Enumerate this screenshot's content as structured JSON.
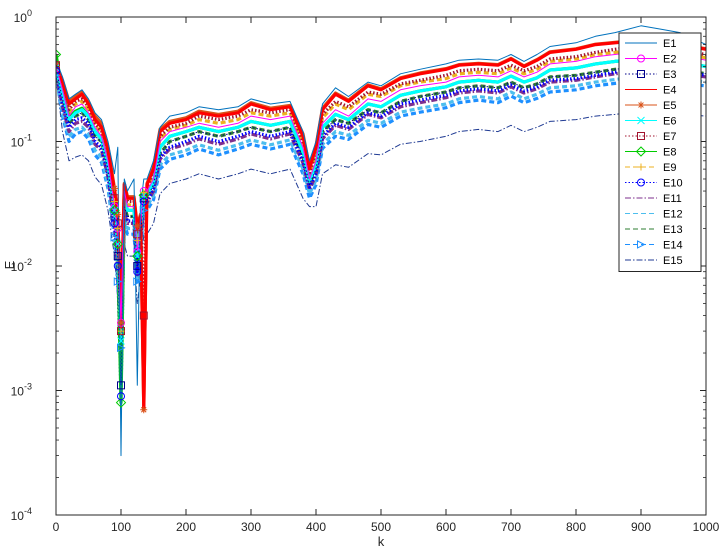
{
  "chart_data": {
    "type": "line",
    "title": "",
    "xlabel": "k",
    "ylabel": "E",
    "xlim": [
      0,
      1000
    ],
    "ylim": [
      0.0001,
      1
    ],
    "yscale": "log",
    "x_ticks": [
      0,
      100,
      200,
      300,
      400,
      500,
      600,
      700,
      800,
      900,
      1000
    ],
    "y_ticks": [
      {
        "value": 0.0001,
        "base": "10",
        "exp": "-4"
      },
      {
        "value": 0.001,
        "base": "10",
        "exp": "-3"
      },
      {
        "value": 0.01,
        "base": "10",
        "exp": "-2"
      },
      {
        "value": 0.1,
        "base": "10",
        "exp": "-1"
      },
      {
        "value": 1,
        "base": "10",
        "exp": "0"
      }
    ],
    "grid": false,
    "legend_position": "top-right",
    "x": [
      0,
      10,
      20,
      30,
      40,
      50,
      60,
      70,
      80,
      90,
      95,
      100,
      105,
      110,
      120,
      125,
      130,
      135,
      140,
      150,
      160,
      175,
      200,
      220,
      250,
      280,
      300,
      330,
      360,
      380,
      390,
      400,
      410,
      430,
      450,
      480,
      500,
      530,
      560,
      600,
      620,
      650,
      680,
      700,
      720,
      740,
      760,
      800,
      830,
      860,
      900,
      930,
      960,
      1000
    ],
    "series": [
      {
        "name": "E1",
        "color": "#0072BD",
        "style": "solid",
        "marker": "none",
        "values": [
          0.45,
          0.33,
          0.22,
          0.24,
          0.26,
          0.22,
          0.17,
          0.15,
          0.1,
          0.055,
          0.09,
          0.0003,
          0.05,
          0.04,
          0.05,
          0.0011,
          0.03,
          0.05,
          0.05,
          0.07,
          0.13,
          0.16,
          0.17,
          0.19,
          0.18,
          0.19,
          0.22,
          0.2,
          0.21,
          0.12,
          0.07,
          0.1,
          0.2,
          0.27,
          0.23,
          0.3,
          0.28,
          0.35,
          0.38,
          0.42,
          0.45,
          0.46,
          0.45,
          0.5,
          0.44,
          0.5,
          0.58,
          0.62,
          0.7,
          0.75,
          0.85,
          0.8,
          0.75,
          0.6
        ]
      },
      {
        "name": "E2",
        "color": "#FF00FF",
        "style": "solid",
        "marker": "o",
        "values": [
          0.4,
          0.26,
          0.16,
          0.19,
          0.2,
          0.17,
          0.13,
          0.11,
          0.07,
          0.03,
          0.02,
          0.0035,
          0.04,
          0.03,
          0.03,
          0.013,
          0.022,
          0.04,
          0.04,
          0.05,
          0.1,
          0.12,
          0.13,
          0.14,
          0.13,
          0.14,
          0.16,
          0.15,
          0.16,
          0.09,
          0.05,
          0.07,
          0.14,
          0.18,
          0.16,
          0.22,
          0.21,
          0.26,
          0.28,
          0.3,
          0.33,
          0.34,
          0.33,
          0.37,
          0.33,
          0.36,
          0.42,
          0.44,
          0.48,
          0.5,
          0.53,
          0.52,
          0.5,
          0.45
        ]
      },
      {
        "name": "E3",
        "color": "#00008B",
        "style": "dotted",
        "marker": "s",
        "values": [
          0.38,
          0.22,
          0.14,
          0.16,
          0.17,
          0.15,
          0.11,
          0.1,
          0.06,
          0.025,
          0.012,
          0.0011,
          0.03,
          0.025,
          0.025,
          0.01,
          0.018,
          0.035,
          0.035,
          0.045,
          0.08,
          0.1,
          0.11,
          0.12,
          0.11,
          0.12,
          0.13,
          0.12,
          0.13,
          0.075,
          0.045,
          0.06,
          0.12,
          0.15,
          0.14,
          0.18,
          0.17,
          0.21,
          0.23,
          0.25,
          0.27,
          0.28,
          0.27,
          0.3,
          0.27,
          0.29,
          0.33,
          0.34,
          0.36,
          0.38,
          0.4,
          0.39,
          0.38,
          0.35
        ]
      },
      {
        "name": "E4",
        "color": "#FF0000",
        "style": "solid",
        "marker": "none",
        "values": [
          0.42,
          0.3,
          0.2,
          0.22,
          0.24,
          0.2,
          0.15,
          0.13,
          0.085,
          0.04,
          0.025,
          0.0032,
          0.045,
          0.035,
          0.035,
          0.02,
          0.025,
          0.0007,
          0.045,
          0.06,
          0.12,
          0.14,
          0.15,
          0.17,
          0.16,
          0.17,
          0.2,
          0.18,
          0.19,
          0.11,
          0.06,
          0.09,
          0.18,
          0.24,
          0.21,
          0.28,
          0.26,
          0.32,
          0.35,
          0.38,
          0.41,
          0.42,
          0.41,
          0.46,
          0.4,
          0.45,
          0.52,
          0.55,
          0.6,
          0.62,
          0.65,
          0.63,
          0.6,
          0.55
        ]
      },
      {
        "name": "E5",
        "color": "#D95319",
        "style": "solid",
        "marker": "*",
        "values": [
          0.42,
          0.31,
          0.21,
          0.23,
          0.25,
          0.21,
          0.16,
          0.14,
          0.09,
          0.042,
          0.026,
          0.0035,
          0.046,
          0.036,
          0.036,
          0.021,
          0.026,
          0.0007,
          0.046,
          0.062,
          0.125,
          0.145,
          0.155,
          0.175,
          0.165,
          0.175,
          0.205,
          0.185,
          0.195,
          0.115,
          0.062,
          0.092,
          0.185,
          0.245,
          0.215,
          0.285,
          0.265,
          0.325,
          0.355,
          0.385,
          0.415,
          0.425,
          0.415,
          0.465,
          0.405,
          0.455,
          0.525,
          0.555,
          0.605,
          0.625,
          0.655,
          0.635,
          0.605,
          0.555
        ]
      },
      {
        "name": "E6",
        "color": "#00FFFF",
        "style": "solid",
        "marker": "x",
        "values": [
          0.39,
          0.24,
          0.15,
          0.17,
          0.18,
          0.16,
          0.12,
          0.105,
          0.065,
          0.028,
          0.015,
          0.0025,
          0.035,
          0.028,
          0.028,
          0.012,
          0.02,
          0.037,
          0.037,
          0.047,
          0.09,
          0.11,
          0.12,
          0.13,
          0.12,
          0.13,
          0.145,
          0.135,
          0.145,
          0.082,
          0.048,
          0.065,
          0.13,
          0.165,
          0.15,
          0.2,
          0.19,
          0.235,
          0.255,
          0.275,
          0.3,
          0.31,
          0.3,
          0.335,
          0.3,
          0.325,
          0.375,
          0.39,
          0.42,
          0.44,
          0.46,
          0.45,
          0.44,
          0.4
        ]
      },
      {
        "name": "E7",
        "color": "#A2142F",
        "style": "dotted",
        "marker": "s",
        "values": [
          0.41,
          0.28,
          0.18,
          0.21,
          0.22,
          0.19,
          0.14,
          0.12,
          0.08,
          0.035,
          0.022,
          0.003,
          0.042,
          0.033,
          0.033,
          0.018,
          0.024,
          0.004,
          0.043,
          0.057,
          0.11,
          0.13,
          0.14,
          0.16,
          0.15,
          0.16,
          0.18,
          0.17,
          0.18,
          0.1,
          0.056,
          0.082,
          0.165,
          0.21,
          0.19,
          0.25,
          0.24,
          0.29,
          0.31,
          0.34,
          0.37,
          0.38,
          0.37,
          0.41,
          0.37,
          0.4,
          0.46,
          0.48,
          0.52,
          0.55,
          0.58,
          0.56,
          0.54,
          0.5
        ]
      },
      {
        "name": "E8",
        "color": "#00CC00",
        "style": "solid",
        "marker": "d",
        "values": [
          0.5,
          0.25,
          0.155,
          0.175,
          0.185,
          0.16,
          0.12,
          0.105,
          0.065,
          0.028,
          0.015,
          0.0008,
          0.035,
          0.028,
          0.028,
          0.012,
          0.02,
          0.037,
          0.037,
          0.047,
          0.09,
          0.11,
          0.12,
          0.13,
          0.12,
          0.13,
          0.145,
          0.135,
          0.145,
          0.082,
          0.048,
          0.065,
          0.13,
          0.165,
          0.15,
          0.2,
          0.19,
          0.235,
          0.255,
          0.275,
          0.3,
          0.31,
          0.3,
          0.335,
          0.3,
          0.325,
          0.375,
          0.39,
          0.42,
          0.44,
          0.46,
          0.45,
          0.44,
          0.4
        ]
      },
      {
        "name": "E9",
        "color": "#EDB120",
        "style": "dashed",
        "marker": "+",
        "values": [
          0.4,
          0.27,
          0.17,
          0.2,
          0.21,
          0.18,
          0.135,
          0.115,
          0.075,
          0.033,
          0.02,
          0.003,
          0.04,
          0.031,
          0.031,
          0.016,
          0.023,
          0.039,
          0.041,
          0.054,
          0.105,
          0.125,
          0.135,
          0.15,
          0.14,
          0.15,
          0.17,
          0.16,
          0.17,
          0.095,
          0.053,
          0.078,
          0.155,
          0.2,
          0.18,
          0.24,
          0.23,
          0.28,
          0.3,
          0.32,
          0.35,
          0.36,
          0.35,
          0.39,
          0.35,
          0.38,
          0.44,
          0.46,
          0.5,
          0.52,
          0.55,
          0.53,
          0.51,
          0.47
        ]
      },
      {
        "name": "E10",
        "color": "#0000FF",
        "style": "dotted",
        "marker": "hex",
        "values": [
          0.37,
          0.2,
          0.13,
          0.15,
          0.155,
          0.14,
          0.1,
          0.09,
          0.055,
          0.022,
          0.01,
          0.0009,
          0.028,
          0.023,
          0.023,
          0.009,
          0.016,
          0.033,
          0.033,
          0.042,
          0.075,
          0.09,
          0.1,
          0.11,
          0.1,
          0.11,
          0.12,
          0.11,
          0.12,
          0.07,
          0.043,
          0.056,
          0.11,
          0.14,
          0.13,
          0.17,
          0.16,
          0.2,
          0.215,
          0.235,
          0.255,
          0.265,
          0.255,
          0.285,
          0.255,
          0.275,
          0.31,
          0.32,
          0.34,
          0.36,
          0.38,
          0.37,
          0.36,
          0.34
        ]
      },
      {
        "name": "E11",
        "color": "#7E2F8E",
        "style": "dashdot",
        "marker": "none",
        "values": [
          0.36,
          0.19,
          0.12,
          0.14,
          0.145,
          0.13,
          0.095,
          0.085,
          0.052,
          0.021,
          0.009,
          0.0012,
          0.027,
          0.022,
          0.022,
          0.0085,
          0.015,
          0.032,
          0.032,
          0.04,
          0.072,
          0.087,
          0.095,
          0.105,
          0.095,
          0.105,
          0.115,
          0.105,
          0.115,
          0.067,
          0.041,
          0.054,
          0.105,
          0.135,
          0.125,
          0.165,
          0.155,
          0.19,
          0.205,
          0.225,
          0.245,
          0.255,
          0.245,
          0.275,
          0.245,
          0.265,
          0.3,
          0.31,
          0.33,
          0.35,
          0.37,
          0.36,
          0.35,
          0.33
        ]
      },
      {
        "name": "E12",
        "color": "#4DBEEE",
        "style": "dashed",
        "marker": "none",
        "values": [
          0.35,
          0.17,
          0.11,
          0.125,
          0.13,
          0.115,
          0.085,
          0.075,
          0.045,
          0.018,
          0.008,
          0.002,
          0.024,
          0.02,
          0.02,
          0.008,
          0.013,
          0.03,
          0.03,
          0.037,
          0.065,
          0.078,
          0.085,
          0.094,
          0.085,
          0.094,
          0.103,
          0.094,
          0.103,
          0.06,
          0.038,
          0.049,
          0.095,
          0.12,
          0.112,
          0.148,
          0.14,
          0.172,
          0.185,
          0.2,
          0.22,
          0.23,
          0.22,
          0.25,
          0.22,
          0.24,
          0.27,
          0.28,
          0.3,
          0.315,
          0.335,
          0.325,
          0.315,
          0.3
        ]
      },
      {
        "name": "E13",
        "color": "#2E7D32",
        "style": "dashed",
        "marker": "none",
        "values": [
          0.38,
          0.22,
          0.14,
          0.16,
          0.17,
          0.15,
          0.11,
          0.1,
          0.06,
          0.025,
          0.012,
          0.0015,
          0.03,
          0.025,
          0.025,
          0.01,
          0.018,
          0.035,
          0.035,
          0.045,
          0.08,
          0.1,
          0.11,
          0.12,
          0.11,
          0.12,
          0.13,
          0.12,
          0.13,
          0.075,
          0.045,
          0.06,
          0.12,
          0.15,
          0.14,
          0.18,
          0.17,
          0.21,
          0.23,
          0.25,
          0.27,
          0.28,
          0.27,
          0.3,
          0.27,
          0.29,
          0.33,
          0.34,
          0.36,
          0.38,
          0.4,
          0.39,
          0.38,
          0.35
        ]
      },
      {
        "name": "E14",
        "color": "#1E90FF",
        "style": "dashed",
        "marker": ">",
        "values": [
          0.34,
          0.16,
          0.1,
          0.115,
          0.12,
          0.105,
          0.078,
          0.068,
          0.042,
          0.017,
          0.0075,
          0.0022,
          0.022,
          0.018,
          0.018,
          0.0075,
          0.012,
          0.028,
          0.028,
          0.034,
          0.06,
          0.072,
          0.078,
          0.087,
          0.078,
          0.087,
          0.095,
          0.087,
          0.095,
          0.055,
          0.035,
          0.045,
          0.088,
          0.11,
          0.104,
          0.137,
          0.13,
          0.16,
          0.172,
          0.187,
          0.205,
          0.215,
          0.205,
          0.232,
          0.205,
          0.222,
          0.25,
          0.26,
          0.28,
          0.293,
          0.31,
          0.3,
          0.292,
          0.28
        ]
      },
      {
        "name": "E15",
        "color": "#1F3A93",
        "style": "dashdot",
        "marker": "none",
        "values": [
          0.33,
          0.12,
          0.07,
          0.075,
          0.078,
          0.07,
          0.052,
          0.045,
          0.028,
          0.012,
          0.0055,
          0.0015,
          0.015,
          0.012,
          0.012,
          0.005,
          0.008,
          0.018,
          0.018,
          0.022,
          0.038,
          0.046,
          0.05,
          0.055,
          0.05,
          0.055,
          0.06,
          0.055,
          0.06,
          0.035,
          0.03,
          0.03,
          0.055,
          0.065,
          0.062,
          0.08,
          0.078,
          0.095,
          0.1,
          0.11,
          0.12,
          0.125,
          0.12,
          0.135,
          0.12,
          0.13,
          0.145,
          0.15,
          0.16,
          0.165,
          0.175,
          0.17,
          0.165,
          0.16
        ]
      }
    ]
  }
}
